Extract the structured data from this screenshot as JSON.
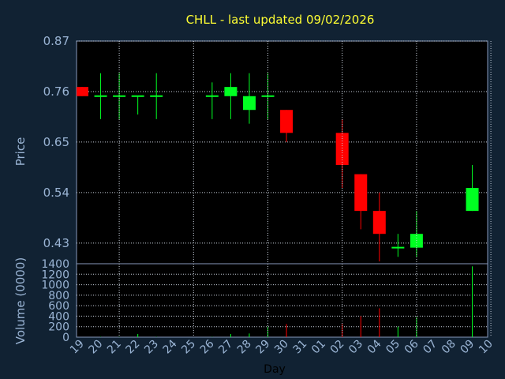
{
  "chart_data": {
    "type": "candlestick",
    "title": "CHLL - last updated 09/02/2026",
    "xlabel": "Day",
    "ylabel": "Price",
    "vlabel": "Volume (0000)",
    "ylim": [
      0.385,
      0.87
    ],
    "yticks": [
      0.87,
      0.76,
      0.65,
      0.54,
      0.43
    ],
    "vlim": [
      0,
      1400
    ],
    "vticks": [
      0,
      200,
      400,
      600,
      800,
      1000,
      1200,
      1400
    ],
    "x_tick_labels": [
      "19",
      "20",
      "21",
      "22",
      "23",
      "24",
      "25",
      "26",
      "27",
      "28",
      "29",
      "30",
      "31",
      "01",
      "02",
      "03",
      "04",
      "05",
      "06",
      "07",
      "08",
      "09",
      "10"
    ],
    "up_color": "#00ff22",
    "down_color": "#ff0000",
    "grid": true,
    "candles": [
      {
        "day": "19",
        "open": 0.77,
        "high": 0.77,
        "low": 0.75,
        "close": 0.75,
        "volume": 0
      },
      {
        "day": "20",
        "open": 0.75,
        "high": 0.8,
        "low": 0.7,
        "close": 0.75,
        "volume": 5
      },
      {
        "day": "21",
        "open": 0.75,
        "high": 0.8,
        "low": 0.7,
        "close": 0.75,
        "volume": 5
      },
      {
        "day": "22",
        "open": 0.75,
        "high": 0.75,
        "low": 0.71,
        "close": 0.75,
        "volume": 60
      },
      {
        "day": "23",
        "open": 0.75,
        "high": 0.8,
        "low": 0.7,
        "close": 0.75,
        "volume": 5
      },
      {
        "day": "26",
        "open": 0.75,
        "high": 0.78,
        "low": 0.7,
        "close": 0.75,
        "volume": 5
      },
      {
        "day": "27",
        "open": 0.75,
        "high": 0.8,
        "low": 0.7,
        "close": 0.77,
        "volume": 60
      },
      {
        "day": "28",
        "open": 0.72,
        "high": 0.8,
        "low": 0.69,
        "close": 0.75,
        "volume": 70
      },
      {
        "day": "29",
        "open": 0.75,
        "high": 0.8,
        "low": 0.7,
        "close": 0.75,
        "volume": 200
      },
      {
        "day": "30",
        "open": 0.72,
        "high": 0.72,
        "low": 0.65,
        "close": 0.67,
        "volume": 250
      },
      {
        "day": "02",
        "open": 0.67,
        "high": 0.7,
        "low": 0.55,
        "close": 0.6,
        "volume": 250
      },
      {
        "day": "03",
        "open": 0.58,
        "high": 0.58,
        "low": 0.46,
        "close": 0.5,
        "volume": 400
      },
      {
        "day": "04",
        "open": 0.5,
        "high": 0.54,
        "low": 0.39,
        "close": 0.45,
        "volume": 550
      },
      {
        "day": "05",
        "open": 0.42,
        "high": 0.45,
        "low": 0.4,
        "close": 0.42,
        "volume": 200
      },
      {
        "day": "06",
        "open": 0.42,
        "high": 0.5,
        "low": 0.4,
        "close": 0.45,
        "volume": 380
      },
      {
        "day": "09",
        "open": 0.5,
        "high": 0.6,
        "low": 0.5,
        "close": 0.55,
        "volume": 1350
      }
    ]
  }
}
